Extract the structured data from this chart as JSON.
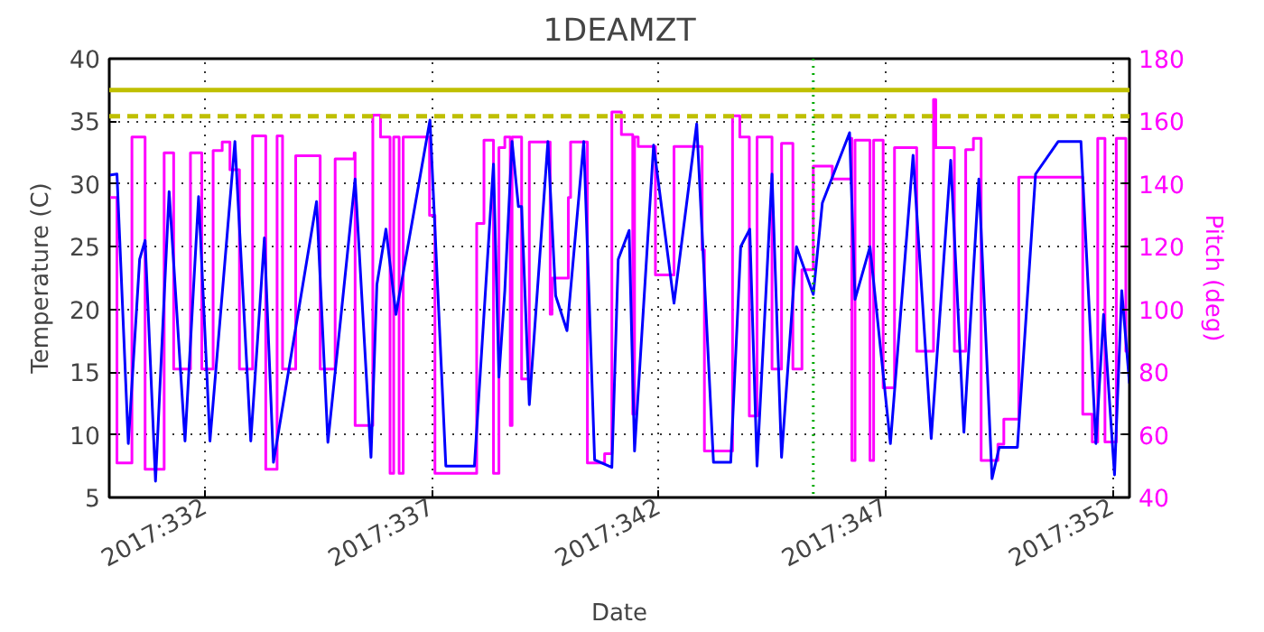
{
  "chart_data": {
    "type": "line",
    "title": "1DEAMZT",
    "xlabel": "Date",
    "ylabel": "Temperature (C)",
    "y2label": "Pitch (deg)",
    "xlim": [
      "2017-11-25T21:07",
      "2017-12-18T08:53"
    ],
    "xticks": [
      {
        "value": "2017-11-28",
        "label": "2017:332"
      },
      {
        "value": "2017-12-03",
        "label": "2017:337"
      },
      {
        "value": "2017-12-08",
        "label": "2017:342"
      },
      {
        "value": "2017-12-13",
        "label": "2017:347"
      },
      {
        "value": "2017-12-18",
        "label": "2017:352"
      }
    ],
    "ylim": [
      5,
      40
    ],
    "yticks": [
      5,
      10,
      15,
      20,
      25,
      30,
      35,
      40
    ],
    "y2lim": [
      40,
      180
    ],
    "y2ticks": [
      40,
      60,
      80,
      100,
      120,
      140,
      160,
      180
    ],
    "grid": true,
    "series": [
      {
        "type": "line",
        "color": "#0000ff",
        "x": [
          "2017-11-25T21:07",
          "2017-11-26T01:12",
          "2017-11-26T07:12",
          "2017-11-26T13:12",
          "2017-11-26T16:05",
          "2017-11-26T21:36",
          "2017-11-27T04:48",
          "2017-11-27T13:12",
          "2017-11-27T20:24",
          "2017-11-28T02:24",
          "2017-11-28T15:36",
          "2017-11-29T00:00",
          "2017-11-29T07:12",
          "2017-11-29T12:00",
          "2017-11-30T10:48",
          "2017-11-30T16:48",
          "2017-12-01T07:12",
          "2017-12-01T15:36",
          "2017-12-01T18:43",
          "2017-12-01T23:31",
          "2017-12-02T04:48",
          "2017-12-02T22:48",
          "2017-12-03T07:12",
          "2017-12-03T22:19",
          "2017-12-04T08:24",
          "2017-12-04T11:17",
          "2017-12-04T14:24",
          "2017-12-04T18:14",
          "2017-12-04T21:36",
          "2017-12-04T23:17",
          "2017-12-05T03:22",
          "2017-12-05T13:12",
          "2017-12-05T17:17",
          "2017-12-05T23:17",
          "2017-12-06T08:10",
          "2017-12-06T13:55",
          "2017-12-06T23:02",
          "2017-12-07T02:24",
          "2017-12-07T08:10",
          "2017-12-07T11:02",
          "2017-12-07T21:07",
          "2017-12-08T07:55",
          "2017-12-08T19:55",
          "2017-12-09T04:48",
          "2017-12-09T13:55",
          "2017-12-09T19:12",
          "2017-12-10T00:00",
          "2017-12-10T03:50",
          "2017-12-10T11:46",
          "2017-12-10T16:48",
          "2017-12-11T00:43",
          "2017-12-11T09:36",
          "2017-12-11T14:24",
          "2017-12-12T04:48",
          "2017-12-12T07:41",
          "2017-12-12T15:36",
          "2017-12-13T02:24",
          "2017-12-13T14:24",
          "2017-12-14T00:00",
          "2017-12-14T10:19",
          "2017-12-14T17:17",
          "2017-12-15T01:12",
          "2017-12-15T08:10",
          "2017-12-15T12:00",
          "2017-12-15T21:36",
          "2017-12-16T07:12",
          "2017-12-16T19:12",
          "2017-12-17T07:12",
          "2017-12-17T15:07",
          "2017-12-17T19:12",
          "2017-12-18T00:58",
          "2017-12-18T04:48",
          "2017-12-18T08:53"
        ],
        "values": [
          30.7,
          30.8,
          9.3,
          24,
          25.5,
          6.3,
          29.4,
          9.5,
          29,
          9.5,
          33.4,
          9.5,
          25.7,
          7.8,
          28.6,
          9.4,
          30.4,
          8.2,
          22,
          26.4,
          19.6,
          35.1,
          7.5,
          7.5,
          31.6,
          14.6,
          21.5,
          33.4,
          28.2,
          28.2,
          12.4,
          33.4,
          21.1,
          18.3,
          33.4,
          8.0,
          7.4,
          24,
          26.3,
          8.7,
          33.1,
          20.5,
          34.8,
          7.8,
          7.8,
          25,
          26.4,
          7.5,
          30.8,
          8.2,
          25,
          21.2,
          28.5,
          34.1,
          20.8,
          25,
          9.3,
          32.3,
          9.7,
          31.9,
          10.2,
          30.4,
          6.5,
          9.0,
          9.0,
          30.8,
          33.4,
          33.4,
          9.3,
          19.6,
          6.8,
          21.5,
          14.1
        ]
      },
      {
        "type": "step",
        "axis": "y2",
        "color": "#ff00ff",
        "x": [
          "2017-11-25T21:07",
          "2017-11-26T01:12",
          "2017-11-26T09:07",
          "2017-11-26T16:05",
          "2017-11-27T02:10",
          "2017-11-27T07:12",
          "2017-11-27T16:05",
          "2017-11-27T22:05",
          "2017-11-28T04:05",
          "2017-11-28T08:53",
          "2017-11-28T12:58",
          "2017-11-28T18:00",
          "2017-11-29T00:58",
          "2017-11-29T07:55",
          "2017-11-29T13:55",
          "2017-11-29T16:48",
          "2017-11-29T23:46",
          "2017-11-30T12:43",
          "2017-11-30T20:38",
          "2017-12-01T06:43",
          "2017-12-01T07:12",
          "2017-12-01T16:34",
          "2017-12-01T20:38",
          "2017-12-02T01:41",
          "2017-12-02T03:36",
          "2017-12-02T06:29",
          "2017-12-02T08:38",
          "2017-12-02T22:34",
          "2017-12-03T01:26",
          "2017-12-03T23:31",
          "2017-12-04T03:22",
          "2017-12-04T08:24",
          "2017-12-04T11:17",
          "2017-12-04T14:24",
          "2017-12-04T17:17",
          "2017-12-04T18:14",
          "2017-12-04T23:17",
          "2017-12-05T03:22",
          "2017-12-05T14:24",
          "2017-12-05T15:22",
          "2017-12-06T00:00",
          "2017-12-06T01:12",
          "2017-12-06T10:05",
          "2017-12-06T19:12",
          "2017-12-06T23:02",
          "2017-12-07T04:05",
          "2017-12-07T10:05",
          "2017-12-07T11:02",
          "2017-12-07T12:58",
          "2017-12-07T22:05",
          "2017-12-08T07:55",
          "2017-12-08T22:48",
          "2017-12-09T00:00",
          "2017-12-09T14:53",
          "2017-12-09T18:43",
          "2017-12-09T23:46",
          "2017-12-10T03:50",
          "2017-12-10T11:46",
          "2017-12-10T16:48",
          "2017-12-10T22:48",
          "2017-12-11T03:36",
          "2017-12-11T09:36",
          "2017-12-11T19:41",
          "2017-12-12T05:31",
          "2017-12-12T06:00",
          "2017-12-12T07:41",
          "2017-12-12T15:36",
          "2017-12-12T17:31",
          "2017-12-12T22:34",
          "2017-12-13T04:34",
          "2017-12-13T16:19",
          "2017-12-14T01:12",
          "2017-12-14T02:24",
          "2017-12-14T12:14",
          "2017-12-14T18:14",
          "2017-12-14T22:19",
          "2017-12-15T02:24",
          "2017-12-15T11:17",
          "2017-12-15T14:24",
          "2017-12-15T22:19",
          "2017-12-17T08:10",
          "2017-12-17T13:12",
          "2017-12-17T16:05",
          "2017-12-17T19:55",
          "2017-12-18T01:55",
          "2017-12-18T06:58",
          "2017-12-18T08:53"
        ],
        "values": [
          135.7,
          51,
          155,
          49,
          150,
          81,
          150,
          81,
          150.7,
          153.4,
          144.6,
          81,
          155.4,
          49,
          155.4,
          81,
          149,
          81,
          148,
          150,
          63,
          162,
          155,
          47.7,
          155,
          47.7,
          155,
          130,
          47.7,
          127.4,
          154,
          47.7,
          151.6,
          155,
          63,
          155,
          77.8,
          153.4,
          98.5,
          110,
          135.7,
          153.4,
          51,
          54,
          163,
          155.8,
          66.6,
          155,
          152,
          111,
          152,
          119,
          54.8,
          161.8,
          155,
          66,
          155,
          81,
          153,
          81,
          112.7,
          145.7,
          141.6,
          154.6,
          51.8,
          154,
          51.8,
          154,
          75,
          151.6,
          86.7,
          167,
          151.6,
          86.7,
          151,
          154.6,
          51.8,
          57,
          65,
          142.2,
          66.6,
          57.7,
          154.6,
          57.7,
          154.6,
          86.7,
          86.7
        ]
      }
    ],
    "ref_lines": [
      {
        "axis": "y",
        "value": 37.5,
        "color": "#bfbf00",
        "line_style": "solid"
      },
      {
        "axis": "y",
        "value": 35.4,
        "color": "#bfbf00",
        "line_style": "dashed"
      },
      {
        "axis": "x",
        "value": "2017-12-11T09:36",
        "color": "#00aa00",
        "line_style": "dotted"
      }
    ]
  }
}
